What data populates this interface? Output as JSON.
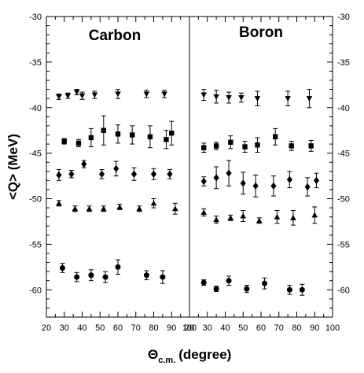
{
  "chart_data": [
    {
      "type": "scatter",
      "title": "Carbon",
      "xlim": [
        20,
        100
      ],
      "ylim": [
        -63,
        -30
      ],
      "x_ticks": [
        "20",
        "30",
        "40",
        "50",
        "60",
        "70",
        "80",
        "90",
        "100"
      ],
      "y_ticks": [
        "-30",
        "-35",
        "-40",
        "-45",
        "-50",
        "-55",
        "-60"
      ],
      "series": [
        {
          "marker": "triangle-down",
          "x": [
            27,
            32,
            37,
            40,
            47,
            60,
            76,
            86
          ],
          "y": [
            -38.8,
            -38.7,
            -38.3,
            -38.7,
            -38.6,
            -38.5,
            -38.5,
            -38.5
          ],
          "err": [
            0.3,
            0.3,
            0.3,
            0.4,
            0.4,
            0.5,
            0.4,
            0.4
          ]
        },
        {
          "marker": "square",
          "x": [
            30,
            38,
            45,
            52,
            60,
            68,
            78,
            87,
            90
          ],
          "y": [
            -43.7,
            -43.9,
            -43.3,
            -42.5,
            -42.9,
            -43.0,
            -43.2,
            -43.5,
            -42.8
          ],
          "err": [
            0.3,
            0.4,
            1.0,
            1.6,
            1.0,
            1.0,
            1.2,
            1.0,
            1.3
          ]
        },
        {
          "marker": "diamond",
          "x": [
            27,
            34,
            41,
            51,
            59,
            69,
            80,
            89
          ],
          "y": [
            -47.4,
            -47.3,
            -46.2,
            -47.3,
            -46.7,
            -47.3,
            -47.3,
            -47.3
          ],
          "err": [
            0.6,
            0.4,
            0.4,
            0.5,
            0.8,
            0.7,
            0.6,
            0.5
          ]
        },
        {
          "marker": "triangle-up",
          "x": [
            27,
            36,
            44,
            52,
            61,
            72,
            80,
            92
          ],
          "y": [
            -50.5,
            -51.1,
            -51.1,
            -51.1,
            -50.9,
            -51.1,
            -50.5,
            -51.1
          ],
          "err": [
            0.3,
            0.3,
            0.3,
            0.3,
            0.3,
            0.3,
            0.5,
            0.6
          ]
        },
        {
          "marker": "circle",
          "x": [
            29,
            37,
            45,
            53,
            60,
            76,
            85
          ],
          "y": [
            -57.6,
            -58.6,
            -58.4,
            -58.6,
            -57.5,
            -58.4,
            -58.6
          ],
          "err": [
            0.5,
            0.5,
            0.6,
            0.6,
            0.8,
            0.5,
            0.7
          ]
        }
      ]
    },
    {
      "type": "scatter",
      "title": "Boron",
      "xlim": [
        20,
        100
      ],
      "ylim": [
        -63,
        -30
      ],
      "x_ticks": [
        "20",
        "30",
        "40",
        "50",
        "60",
        "70",
        "80",
        "90",
        "100"
      ],
      "y_ticks": [
        "-30",
        "-35",
        "-40",
        "-45",
        "-50",
        "-55",
        "-60"
      ],
      "series": [
        {
          "marker": "triangle-down",
          "x": [
            28,
            35,
            42,
            49,
            58,
            75,
            87
          ],
          "y": [
            -38.6,
            -38.8,
            -38.9,
            -38.9,
            -39.0,
            -39.0,
            -39.0
          ],
          "err": [
            0.6,
            0.7,
            0.6,
            0.5,
            0.8,
            0.8,
            1.0
          ]
        },
        {
          "marker": "square",
          "x": [
            28,
            35,
            43,
            51,
            58,
            68,
            77,
            88
          ],
          "y": [
            -44.4,
            -44.2,
            -43.8,
            -44.3,
            -44.1,
            -43.2,
            -44.2,
            -44.2
          ],
          "err": [
            0.5,
            0.4,
            0.7,
            0.6,
            0.8,
            0.9,
            0.5,
            0.6
          ]
        },
        {
          "marker": "diamond",
          "x": [
            28,
            35,
            42,
            50,
            57,
            67,
            76,
            86,
            91
          ],
          "y": [
            -48.1,
            -47.7,
            -47.2,
            -48.3,
            -48.6,
            -48.6,
            -47.9,
            -48.7,
            -48.0
          ],
          "err": [
            0.5,
            1.2,
            1.4,
            1.2,
            1.2,
            1.1,
            0.9,
            1.0,
            0.8
          ]
        },
        {
          "marker": "triangle-up",
          "x": [
            28,
            35,
            43,
            50,
            59,
            69,
            78,
            90
          ],
          "y": [
            -51.5,
            -52.3,
            -52.1,
            -51.9,
            -52.4,
            -52.0,
            -52.1,
            -51.8
          ],
          "err": [
            0.4,
            0.4,
            0.3,
            0.6,
            0.3,
            0.7,
            0.8,
            0.9
          ]
        },
        {
          "marker": "circle",
          "x": [
            28,
            35,
            42,
            52,
            62,
            76,
            83
          ],
          "y": [
            -59.2,
            -59.9,
            -59.0,
            -59.9,
            -59.3,
            -60.0,
            -60.0
          ],
          "err": [
            0.3,
            0.3,
            0.5,
            0.4,
            0.6,
            0.5,
            0.6
          ]
        }
      ]
    }
  ],
  "xlabel": "(degree)",
  "xlabel_symbol": "Θ",
  "xlabel_subscript": "c.m.",
  "ylabel": "<Q> (MeV)"
}
